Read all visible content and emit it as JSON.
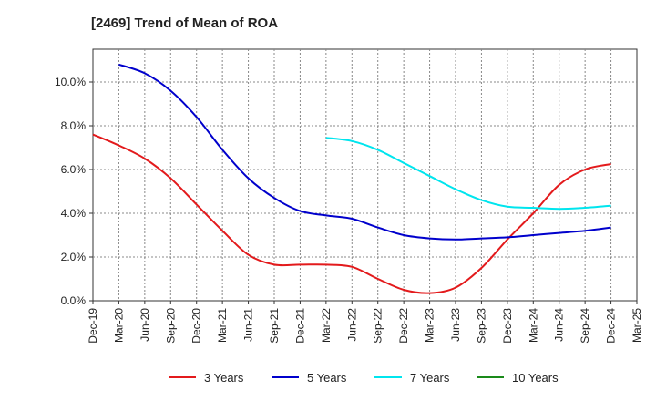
{
  "chart_data": {
    "type": "line",
    "title": "[2469]  Trend of Mean of ROA",
    "xlabel": "",
    "ylabel": "",
    "x_ticks": [
      "Dec-19",
      "Mar-20",
      "Jun-20",
      "Sep-20",
      "Dec-20",
      "Mar-21",
      "Jun-21",
      "Sep-21",
      "Dec-21",
      "Mar-22",
      "Jun-22",
      "Sep-22",
      "Dec-22",
      "Mar-23",
      "Jun-23",
      "Sep-23",
      "Dec-23",
      "Mar-24",
      "Jun-24",
      "Sep-24",
      "Dec-24",
      "Mar-25"
    ],
    "y_ticks": [
      "0.0%",
      "2.0%",
      "4.0%",
      "6.0%",
      "8.0%",
      "10.0%"
    ],
    "ylim": [
      0,
      11.5
    ],
    "grid": "dashed",
    "legend": "bottom",
    "series": [
      {
        "name": "3 Years",
        "color": "#e31a1c",
        "points": [
          [
            "Dec-19",
            7.6
          ],
          [
            "Mar-20",
            7.1
          ],
          [
            "Jun-20",
            6.5
          ],
          [
            "Sep-20",
            5.6
          ],
          [
            "Dec-20",
            4.4
          ],
          [
            "Mar-21",
            3.2
          ],
          [
            "Jun-21",
            2.1
          ],
          [
            "Sep-21",
            1.65
          ],
          [
            "Dec-21",
            1.65
          ],
          [
            "Mar-22",
            1.65
          ],
          [
            "Jun-22",
            1.55
          ],
          [
            "Sep-22",
            1.0
          ],
          [
            "Dec-22",
            0.5
          ],
          [
            "Mar-23",
            0.35
          ],
          [
            "Jun-23",
            0.6
          ],
          [
            "Sep-23",
            1.5
          ],
          [
            "Dec-23",
            2.8
          ],
          [
            "Mar-24",
            4.0
          ],
          [
            "Jun-24",
            5.3
          ],
          [
            "Sep-24",
            6.0
          ],
          [
            "Dec-24",
            6.25
          ]
        ]
      },
      {
        "name": "5 Years",
        "color": "#0000cc",
        "points": [
          [
            "Mar-20",
            10.8
          ],
          [
            "Jun-20",
            10.4
          ],
          [
            "Sep-20",
            9.6
          ],
          [
            "Dec-20",
            8.4
          ],
          [
            "Mar-21",
            6.9
          ],
          [
            "Jun-21",
            5.6
          ],
          [
            "Sep-21",
            4.7
          ],
          [
            "Dec-21",
            4.1
          ],
          [
            "Mar-22",
            3.9
          ],
          [
            "Jun-22",
            3.75
          ],
          [
            "Sep-22",
            3.35
          ],
          [
            "Dec-22",
            3.0
          ],
          [
            "Mar-23",
            2.85
          ],
          [
            "Jun-23",
            2.8
          ],
          [
            "Sep-23",
            2.85
          ],
          [
            "Dec-23",
            2.9
          ],
          [
            "Mar-24",
            3.0
          ],
          [
            "Jun-24",
            3.1
          ],
          [
            "Sep-24",
            3.2
          ],
          [
            "Dec-24",
            3.35
          ]
        ]
      },
      {
        "name": "7 Years",
        "color": "#00e5ee",
        "points": [
          [
            "Mar-22",
            7.45
          ],
          [
            "Jun-22",
            7.3
          ],
          [
            "Sep-22",
            6.9
          ],
          [
            "Dec-22",
            6.3
          ],
          [
            "Mar-23",
            5.7
          ],
          [
            "Jun-23",
            5.1
          ],
          [
            "Sep-23",
            4.6
          ],
          [
            "Dec-23",
            4.3
          ],
          [
            "Mar-24",
            4.25
          ],
          [
            "Jun-24",
            4.2
          ],
          [
            "Sep-24",
            4.25
          ],
          [
            "Dec-24",
            4.35
          ]
        ]
      },
      {
        "name": "10 Years",
        "color": "#1a8a1a",
        "points": []
      }
    ]
  }
}
